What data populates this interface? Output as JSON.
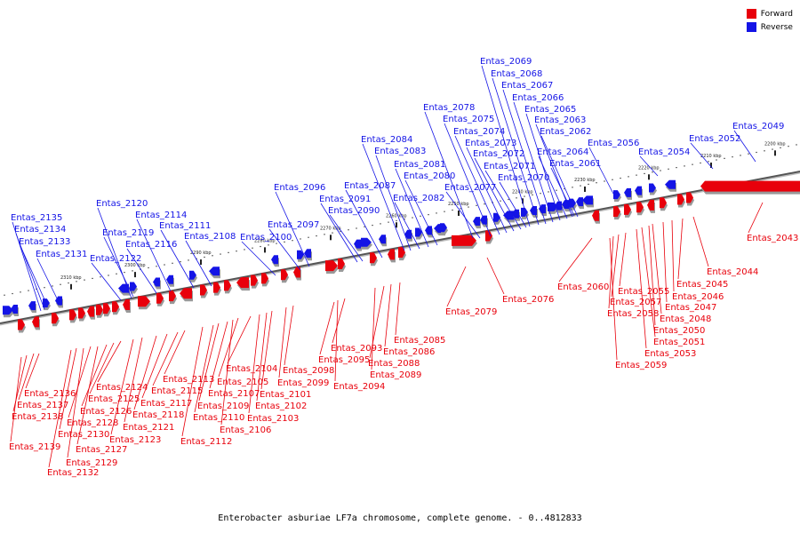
{
  "legend": {
    "forward_label": "Forward",
    "reverse_label": "Reverse",
    "forward_color": "#e8000b",
    "reverse_color": "#1414e6"
  },
  "caption": "Enterobacter asburiae LF7a chromosome, complete genome. - 0..4812833",
  "chromosome": {
    "ticks": [
      "2200 kbp",
      "2210 kbp",
      "2220 kbp",
      "2230 kbp",
      "2240 kbp",
      "2250 kbp",
      "2260 kbp",
      "2270 kbp",
      "2280 kbp",
      "2290 kbp",
      "2300 kbp",
      "2310 kbp"
    ]
  },
  "genes": {
    "reverse": [
      "Entas_2049",
      "Entas_2052",
      "Entas_2054",
      "Entas_2056",
      "Entas_2061",
      "Entas_2062",
      "Entas_2063",
      "Entas_2064",
      "Entas_2065",
      "Entas_2066",
      "Entas_2067",
      "Entas_2068",
      "Entas_2069",
      "Entas_2070",
      "Entas_2071",
      "Entas_2072",
      "Entas_2073",
      "Entas_2074",
      "Entas_2075",
      "Entas_2077",
      "Entas_2078",
      "Entas_2080",
      "Entas_2081",
      "Entas_2082",
      "Entas_2083",
      "Entas_2084",
      "Entas_2087",
      "Entas_2090",
      "Entas_2091",
      "Entas_2096",
      "Entas_2097",
      "Entas_2100",
      "Entas_2108",
      "Entas_2111",
      "Entas_2114",
      "Entas_2116",
      "Entas_2119",
      "Entas_2120",
      "Entas_2122",
      "Entas_2131",
      "Entas_2133",
      "Entas_2134",
      "Entas_2135"
    ],
    "forward": [
      "Entas_2043",
      "Entas_2044",
      "Entas_2045",
      "Entas_2046",
      "Entas_2047",
      "Entas_2048",
      "Entas_2050",
      "Entas_2051",
      "Entas_2053",
      "Entas_2055",
      "Entas_2057",
      "Entas_2058",
      "Entas_2059",
      "Entas_2060",
      "Entas_2076",
      "Entas_2079",
      "Entas_2085",
      "Entas_2086",
      "Entas_2088",
      "Entas_2089",
      "Entas_2093",
      "Entas_2094",
      "Entas_2095",
      "Entas_2098",
      "Entas_2099",
      "Entas_2101",
      "Entas_2102",
      "Entas_2103",
      "Entas_2104",
      "Entas_2105",
      "Entas_2106",
      "Entas_2107",
      "Entas_2109",
      "Entas_2110",
      "Entas_2112",
      "Entas_2113",
      "Entas_2115",
      "Entas_2117",
      "Entas_2118",
      "Entas_2121",
      "Entas_2123",
      "Entas_2124",
      "Entas_2125",
      "Entas_2126",
      "Entas_2127",
      "Entas_2128",
      "Entas_2129",
      "Entas_2130",
      "Entas_2132",
      "Entas_2136",
      "Entas_2137",
      "Entas_2138",
      "Entas_2139"
    ]
  }
}
